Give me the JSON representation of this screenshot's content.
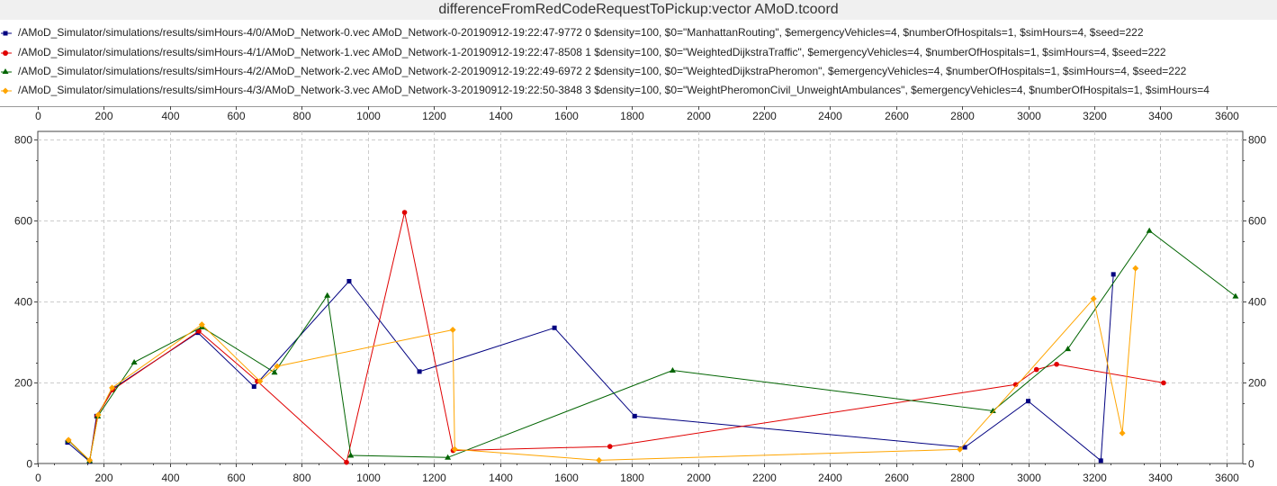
{
  "chart_data": {
    "type": "line",
    "title": "differenceFromRedCodeRequestToPickup:vector AMoD.tcoord",
    "xlim": [
      0,
      3650
    ],
    "ylim": [
      0,
      820
    ],
    "x_ticks": [
      0,
      200,
      400,
      600,
      800,
      1000,
      1200,
      1400,
      1600,
      1800,
      2000,
      2200,
      2400,
      2600,
      2800,
      3000,
      3200,
      3400,
      3600
    ],
    "y_ticks": [
      0,
      200,
      400,
      600,
      800
    ],
    "grid": true,
    "legend_position": "top",
    "series": [
      {
        "name": "/AMoD_Simulator/simulations/results/simHours-4/0/AMoD_Network-0.vec AMoD_Network-0-20190912-19:22:47-9772 0 $density=100, $0=\"ManhattanRouting\", $emergencyVehicles=4, $numberOfHospitals=1, $simHours=4, $seed=222",
        "color": "#000080",
        "marker": "square",
        "x": [
          90,
          157,
          178,
          228,
          485,
          655,
          943,
          1156,
          1565,
          1808,
          2808,
          3000,
          3220,
          3258
        ],
        "y": [
          52,
          5,
          117,
          185,
          323,
          190,
          450,
          227,
          335,
          117,
          40,
          154,
          7,
          467
        ]
      },
      {
        "name": "/AMoD_Simulator/simulations/results/simHours-4/1/AMoD_Network-1.vec AMoD_Network-1-20190912-19:22:47-8508 1 $density=100, $0=\"WeightedDijkstraTraffic\", $emergencyVehicles=4, $numberOfHospitals=1, $simHours=4, $seed=222",
        "color": "#e00000",
        "marker": "circle",
        "x": [
          93,
          157,
          180,
          227,
          488,
          665,
          935,
          1111,
          1258,
          1733,
          2962,
          3025,
          3086,
          3410
        ],
        "y": [
          57,
          7,
          117,
          182,
          327,
          203,
          3,
          620,
          32,
          42,
          195,
          232,
          245,
          199
        ]
      },
      {
        "name": "/AMoD_Simulator/simulations/results/simHours-4/2/AMoD_Network-2.vec AMoD_Network-2-20190912-19:22:49-6972 2 $density=100, $0=\"WeightedDijkstraPheromon\", $emergencyVehicles=4, $numberOfHospitals=1, $simHours=4, $seed=222",
        "color": "#006400",
        "marker": "triangle",
        "x": [
          93,
          157,
          182,
          292,
          497,
          717,
          877,
          948,
          1242,
          1923,
          2893,
          3120,
          3367,
          3628
        ],
        "y": [
          57,
          7,
          117,
          250,
          337,
          225,
          415,
          20,
          15,
          230,
          130,
          283,
          575,
          413
        ]
      },
      {
        "name": "/AMoD_Simulator/simulations/results/simHours-4/3/AMoD_Network-3.vec AMoD_Network-3-20190912-19:22:50-3848 3 $density=100, $0=\"WeightPheromonCivil_UnweightAmbulances\", $emergencyVehicles=4, $numberOfHospitals=1, $simHours=4",
        "color": "#ffa500",
        "marker": "diamond",
        "x": [
          93,
          157,
          183,
          225,
          497,
          673,
          725,
          1257,
          1263,
          1700,
          2793,
          3198,
          3285,
          3325
        ],
        "y": [
          58,
          8,
          120,
          187,
          343,
          203,
          240,
          330,
          35,
          8,
          35,
          407,
          75,
          482
        ]
      }
    ]
  }
}
